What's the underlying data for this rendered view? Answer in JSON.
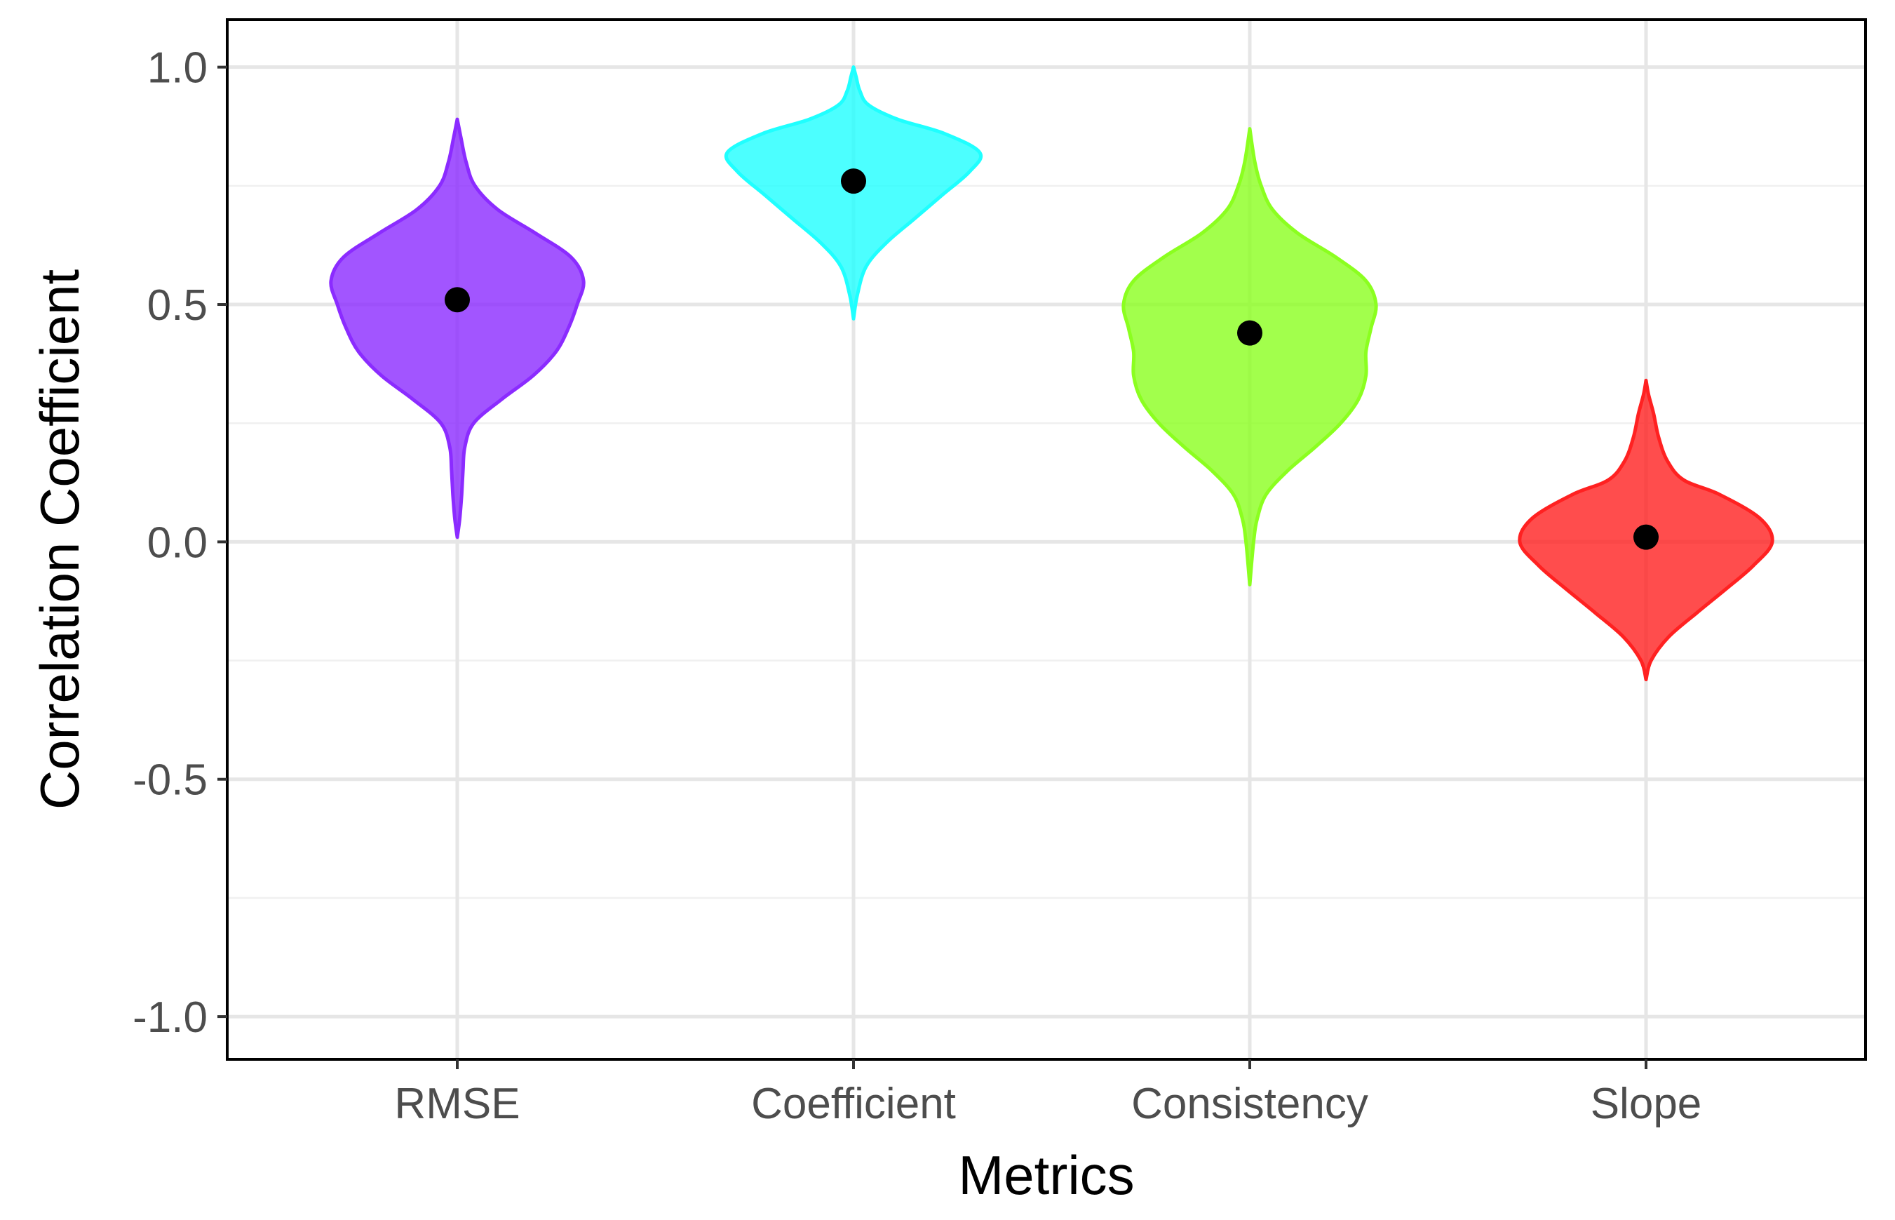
{
  "chart_data": {
    "type": "violin",
    "title": "",
    "xlabel": "Metrics",
    "ylabel": "Correlation Coefficient",
    "ylim": [
      -1.09,
      1.1
    ],
    "yticks": [
      -1.0,
      -0.5,
      0.0,
      0.5,
      1.0
    ],
    "ytick_labels": [
      "-1.0",
      "-0.5",
      "0.0",
      "0.5",
      "1.0"
    ],
    "categories": [
      "RMSE",
      "Coefficient",
      "Consistency",
      "Slope"
    ],
    "grid": true,
    "series": [
      {
        "name": "RMSE",
        "color": "#8B2BFF",
        "mean": 0.51,
        "min": 0.01,
        "max": 0.89,
        "profile": [
          [
            0.01,
            0.0
          ],
          [
            0.05,
            0.02
          ],
          [
            0.1,
            0.035
          ],
          [
            0.15,
            0.045
          ],
          [
            0.2,
            0.06
          ],
          [
            0.25,
            0.13
          ],
          [
            0.3,
            0.35
          ],
          [
            0.35,
            0.6
          ],
          [
            0.4,
            0.78
          ],
          [
            0.45,
            0.88
          ],
          [
            0.5,
            0.95
          ],
          [
            0.55,
            1.0
          ],
          [
            0.6,
            0.9
          ],
          [
            0.65,
            0.62
          ],
          [
            0.7,
            0.32
          ],
          [
            0.75,
            0.14
          ],
          [
            0.8,
            0.07
          ],
          [
            0.85,
            0.03
          ],
          [
            0.89,
            0.0
          ]
        ]
      },
      {
        "name": "Coefficient",
        "color": "#1FFFFF",
        "mean": 0.76,
        "min": 0.47,
        "max": 1.0,
        "profile": [
          [
            0.47,
            0.0
          ],
          [
            0.52,
            0.03
          ],
          [
            0.58,
            0.1
          ],
          [
            0.63,
            0.26
          ],
          [
            0.68,
            0.48
          ],
          [
            0.73,
            0.7
          ],
          [
            0.78,
            0.92
          ],
          [
            0.82,
            1.0
          ],
          [
            0.86,
            0.72
          ],
          [
            0.89,
            0.35
          ],
          [
            0.92,
            0.12
          ],
          [
            0.95,
            0.05
          ],
          [
            0.98,
            0.02
          ],
          [
            1.0,
            0.0
          ]
        ]
      },
      {
        "name": "Consistency",
        "color": "#8BFF1F",
        "mean": 0.44,
        "min": -0.09,
        "max": 0.87,
        "profile": [
          [
            -0.09,
            0.0
          ],
          [
            0.0,
            0.03
          ],
          [
            0.05,
            0.06
          ],
          [
            0.1,
            0.13
          ],
          [
            0.15,
            0.3
          ],
          [
            0.2,
            0.52
          ],
          [
            0.25,
            0.72
          ],
          [
            0.3,
            0.86
          ],
          [
            0.35,
            0.92
          ],
          [
            0.4,
            0.92
          ],
          [
            0.45,
            0.96
          ],
          [
            0.5,
            1.0
          ],
          [
            0.55,
            0.92
          ],
          [
            0.6,
            0.68
          ],
          [
            0.65,
            0.38
          ],
          [
            0.7,
            0.18
          ],
          [
            0.75,
            0.09
          ],
          [
            0.8,
            0.04
          ],
          [
            0.87,
            0.0
          ]
        ]
      },
      {
        "name": "Slope",
        "color": "#FF2121",
        "mean": 0.01,
        "min": -0.29,
        "max": 0.34,
        "profile": [
          [
            -0.29,
            0.0
          ],
          [
            -0.25,
            0.04
          ],
          [
            -0.2,
            0.18
          ],
          [
            -0.15,
            0.4
          ],
          [
            -0.1,
            0.63
          ],
          [
            -0.05,
            0.85
          ],
          [
            0.0,
            1.0
          ],
          [
            0.05,
            0.9
          ],
          [
            0.1,
            0.58
          ],
          [
            0.13,
            0.3
          ],
          [
            0.17,
            0.17
          ],
          [
            0.22,
            0.1
          ],
          [
            0.27,
            0.06
          ],
          [
            0.31,
            0.02
          ],
          [
            0.34,
            0.0
          ]
        ]
      }
    ]
  }
}
